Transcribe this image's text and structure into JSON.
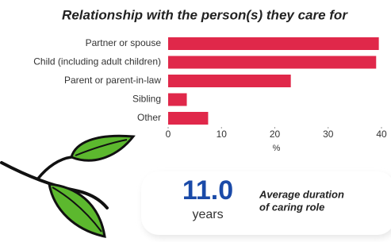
{
  "chart_data": {
    "type": "bar",
    "orientation": "horizontal",
    "title": "Relationship with the person(s) they care for",
    "categories": [
      "Partner or spouse",
      "Child (including adult children)",
      "Parent or parent-in-law",
      "Sibling",
      "Other"
    ],
    "values": [
      39.5,
      39,
      23,
      3.5,
      7.5
    ],
    "color": "#e0284a",
    "xlim": [
      0,
      40
    ],
    "xticks": [
      0,
      10,
      20,
      30,
      40
    ],
    "x_label": "%"
  },
  "highlight": {
    "figure": "11.0",
    "unit": "years",
    "caption": [
      "Average duration",
      "of caring role"
    ]
  }
}
